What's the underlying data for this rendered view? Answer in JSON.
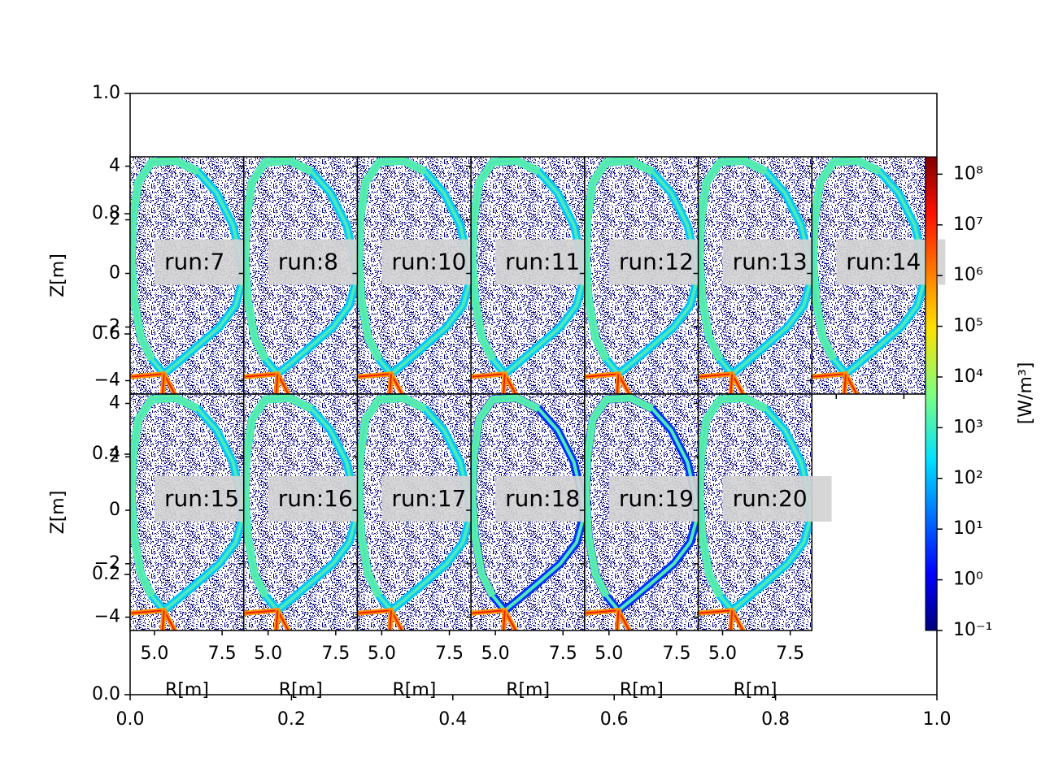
{
  "chart_data": {
    "type": "heatmap",
    "background_axes": {
      "xlim": [
        0,
        1
      ],
      "ylim": [
        0,
        1
      ],
      "xticks": [
        {
          "value": 0,
          "label": "0.0"
        },
        0.2,
        0.4,
        0.6,
        0.8,
        {
          "value": 1,
          "label": "1.0"
        }
      ],
      "yticks": [
        {
          "value": 0,
          "label": "0.0"
        },
        0.2,
        0.4,
        0.6,
        0.8,
        {
          "value": 1,
          "label": "1.0"
        }
      ]
    },
    "panels": {
      "xlim": [
        4.1,
        8.3
      ],
      "ylim": [
        -4.5,
        4.35
      ],
      "xticks": [
        {
          "value": 5,
          "label": "5.0"
        },
        7.5
      ],
      "yticks": [
        {
          "value": -4,
          "label": "−4"
        },
        {
          "value": -2,
          "label": "−2"
        },
        0,
        2,
        4
      ],
      "xlabel": "R[m]",
      "ylabel": "Z[m]",
      "rows": [
        [
          "run:7",
          "run:8",
          "run:10",
          "run:11",
          "run:12",
          "run:13",
          "run:14"
        ],
        [
          "run:15",
          "run:16",
          "run:17",
          "run:18",
          "run:19",
          "run:20"
        ]
      ]
    },
    "colorbar": {
      "log": true,
      "ylim": [
        0.1,
        220000000
      ],
      "yticks": [
        {
          "value": 0.1,
          "label": "10⁻¹"
        },
        {
          "value": 1,
          "label": "10⁰"
        },
        {
          "value": 10,
          "label": "10¹"
        },
        {
          "value": 100,
          "label": "10²"
        },
        {
          "value": 1000,
          "label": "10³"
        },
        {
          "value": 10000,
          "label": "10⁴"
        },
        {
          "value": 100000,
          "label": "10⁵"
        },
        {
          "value": 1000000,
          "label": "10⁶"
        },
        {
          "value": 10000000,
          "label": "10⁷"
        },
        {
          "value": 100000000,
          "label": "10⁸"
        }
      ],
      "label": "[W/m³]"
    }
  }
}
